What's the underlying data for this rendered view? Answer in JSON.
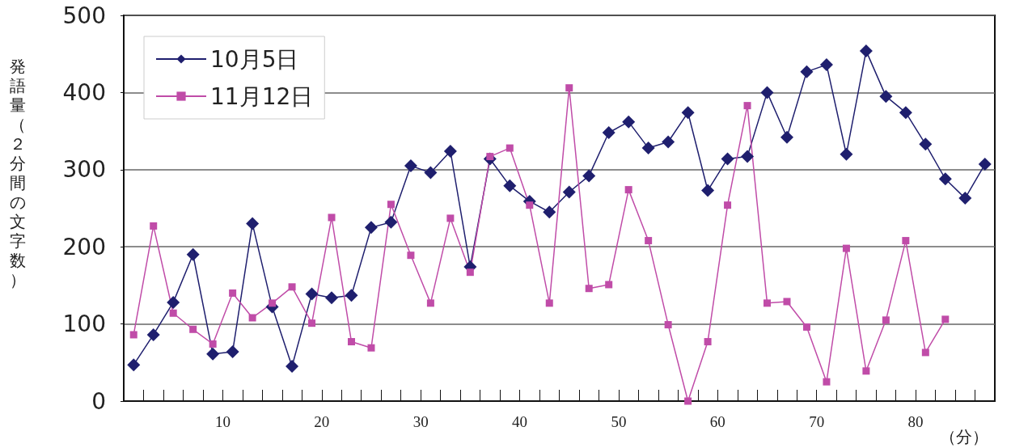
{
  "chart_data": {
    "type": "line",
    "ylabel": "発語量（２分間の文字数）",
    "xlabel": "（分）",
    "x": [
      1,
      3,
      5,
      7,
      9,
      11,
      13,
      15,
      17,
      19,
      21,
      23,
      25,
      27,
      29,
      31,
      33,
      35,
      37,
      39,
      41,
      43,
      45,
      47,
      49,
      51,
      53,
      55,
      57,
      59,
      61,
      63,
      65,
      67,
      69,
      71,
      73,
      75,
      77,
      79,
      81,
      83,
      85,
      87
    ],
    "series": [
      {
        "name": "10月5日",
        "color": "#1f1f6e",
        "marker": "diamond",
        "values": [
          47,
          86,
          128,
          190,
          61,
          64,
          230,
          122,
          45,
          139,
          134,
          137,
          225,
          232,
          305,
          296,
          324,
          174,
          314,
          279,
          259,
          245,
          271,
          292,
          348,
          362,
          328,
          336,
          374,
          273,
          314,
          317,
          400,
          342,
          427,
          436,
          320,
          454,
          395,
          374,
          333,
          288,
          263,
          307
        ]
      },
      {
        "name": "11月12日",
        "color": "#c04ca8",
        "marker": "square",
        "values": [
          86,
          227,
          114,
          93,
          74,
          140,
          108,
          127,
          148,
          101,
          238,
          77,
          69,
          255,
          189,
          127,
          237,
          167,
          317,
          328,
          254,
          127,
          406,
          146,
          151,
          274,
          208,
          99,
          0,
          77,
          254,
          383,
          127,
          129,
          96,
          25,
          198,
          39,
          105,
          208,
          63,
          106,
          null,
          null
        ]
      }
    ],
    "xlim": [
      0,
      88
    ],
    "xticks": [
      {
        "value": 2,
        "label": null
      },
      {
        "value": 4,
        "label": null
      },
      {
        "value": 6,
        "label": null
      },
      {
        "value": 8,
        "label": null
      },
      10,
      {
        "value": 12,
        "label": null
      },
      {
        "value": 14,
        "label": null
      },
      {
        "value": 16,
        "label": null
      },
      {
        "value": 18,
        "label": null
      },
      20,
      {
        "value": 22,
        "label": null
      },
      {
        "value": 24,
        "label": null
      },
      {
        "value": 26,
        "label": null
      },
      {
        "value": 28,
        "label": null
      },
      30,
      {
        "value": 32,
        "label": null
      },
      {
        "value": 34,
        "label": null
      },
      {
        "value": 36,
        "label": null
      },
      {
        "value": 38,
        "label": null
      },
      40,
      {
        "value": 42,
        "label": null
      },
      {
        "value": 44,
        "label": null
      },
      {
        "value": 46,
        "label": null
      },
      {
        "value": 48,
        "label": null
      },
      50,
      {
        "value": 52,
        "label": null
      },
      {
        "value": 54,
        "label": null
      },
      {
        "value": 56,
        "label": null
      },
      {
        "value": 58,
        "label": null
      },
      60,
      {
        "value": 62,
        "label": null
      },
      {
        "value": 64,
        "label": null
      },
      {
        "value": 66,
        "label": null
      },
      {
        "value": 68,
        "label": null
      },
      70,
      {
        "value": 72,
        "label": null
      },
      {
        "value": 74,
        "label": null
      },
      {
        "value": 76,
        "label": null
      },
      {
        "value": 78,
        "label": null
      },
      80,
      {
        "value": 82,
        "label": null
      },
      {
        "value": 84,
        "label": null
      },
      {
        "value": 86,
        "label": null
      }
    ],
    "ylim": [
      0,
      500
    ],
    "yticks": [
      0,
      100,
      200,
      300,
      400,
      500
    ],
    "grid": "y",
    "legend": "top left",
    "line_style": "solid"
  }
}
